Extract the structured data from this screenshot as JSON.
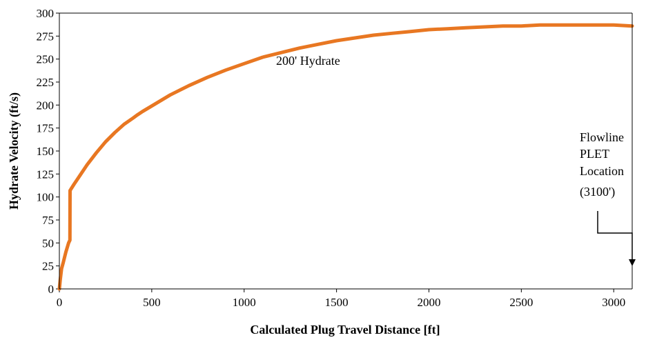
{
  "chart_data": {
    "type": "line",
    "title": "",
    "xlabel": "Calculated Plug Travel Distance [ft]",
    "ylabel": "Hydrate Velocity (ft/s)",
    "xlim": [
      0,
      3100
    ],
    "ylim": [
      0,
      300
    ],
    "xticks": [
      0,
      500,
      1000,
      1500,
      2000,
      2500,
      3000
    ],
    "yticks": [
      0,
      25,
      50,
      75,
      100,
      125,
      150,
      175,
      200,
      225,
      250,
      275,
      300
    ],
    "grid": false,
    "series": [
      {
        "name": "200' Hydrate",
        "color": "#E87722",
        "points": [
          [
            0,
            0
          ],
          [
            5,
            10
          ],
          [
            12,
            22
          ],
          [
            20,
            28
          ],
          [
            35,
            40
          ],
          [
            50,
            50
          ],
          [
            57,
            53
          ],
          [
            58,
            107
          ],
          [
            80,
            114
          ],
          [
            100,
            120
          ],
          [
            150,
            135
          ],
          [
            200,
            148
          ],
          [
            250,
            160
          ],
          [
            300,
            170
          ],
          [
            350,
            179
          ],
          [
            400,
            186
          ],
          [
            420,
            189
          ],
          [
            450,
            193
          ],
          [
            500,
            199
          ],
          [
            600,
            211
          ],
          [
            700,
            221
          ],
          [
            800,
            230
          ],
          [
            900,
            238
          ],
          [
            1000,
            245
          ],
          [
            1100,
            252
          ],
          [
            1200,
            257
          ],
          [
            1300,
            262
          ],
          [
            1400,
            266
          ],
          [
            1500,
            270
          ],
          [
            1600,
            273
          ],
          [
            1700,
            276
          ],
          [
            1800,
            278
          ],
          [
            1900,
            280
          ],
          [
            2000,
            282
          ],
          [
            2100,
            283
          ],
          [
            2200,
            284
          ],
          [
            2300,
            285
          ],
          [
            2400,
            286
          ],
          [
            2500,
            286
          ],
          [
            2600,
            287
          ],
          [
            2700,
            287
          ],
          [
            2800,
            287
          ],
          [
            2900,
            287
          ],
          [
            3000,
            287
          ],
          [
            3100,
            286
          ]
        ]
      }
    ],
    "annotations": [
      {
        "name": "series-label",
        "text": "200' Hydrate",
        "x": 1200,
        "y": 247
      },
      {
        "name": "flowline-plet",
        "lines": [
          "Flowline",
          "PLET",
          "Location",
          "(3100')"
        ],
        "target_x": 3100
      }
    ]
  }
}
